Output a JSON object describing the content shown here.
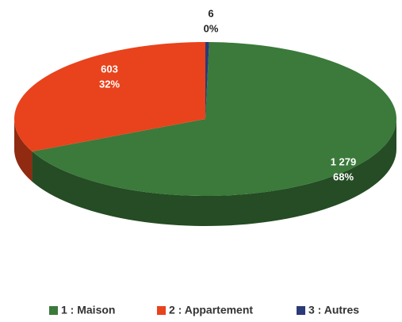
{
  "chart_data": {
    "type": "pie3d",
    "categories": [
      "1 : Maison",
      "2 : Appartement",
      "3 : Autres"
    ],
    "values": [
      1279,
      603,
      6
    ],
    "value_labels": [
      "1 279",
      "603",
      "6"
    ],
    "percent_labels": [
      "68%",
      "32%",
      "0%"
    ],
    "colors": [
      "#3b7a3a",
      "#e8431c",
      "#2b3a78"
    ],
    "legend": "bottom"
  }
}
